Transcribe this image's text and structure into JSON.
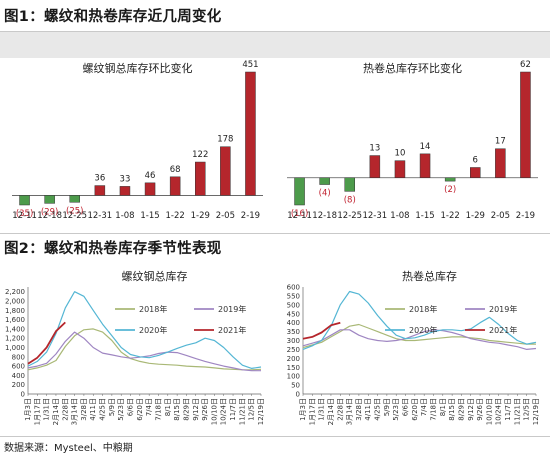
{
  "fig1": {
    "title": "图1：螺纹和热卷库存近几周变化"
  },
  "fig2": {
    "title": "图2：螺纹和热卷库存季节性表现"
  },
  "source": "数据来源：Mysteel、中粮期",
  "colors": {
    "pos": "#b5262c",
    "neg": "#4d9b4b",
    "neg_label": "#c0202e",
    "s2018": "#a9b876",
    "s2019": "#9f86c2",
    "s2020": "#54b6d4",
    "s2021": "#b5262c"
  },
  "chart_data": [
    {
      "type": "bar",
      "title": "螺纹钢总库存环比变化",
      "categories": [
        "12-11",
        "12-18",
        "12-25",
        "12-31",
        "1-08",
        "1-15",
        "1-22",
        "1-29",
        "2-05",
        "2-19"
      ],
      "values": [
        -35,
        -29,
        -25,
        36,
        33,
        46,
        68,
        122,
        178,
        451
      ],
      "labels": [
        "(35)",
        "(29)",
        "(25)",
        "36",
        "33",
        "46",
        "68",
        "122",
        "178",
        "451"
      ],
      "ylim": [
        -35,
        451
      ]
    },
    {
      "type": "bar",
      "title": "热卷总库存环比变化",
      "categories": [
        "12-11",
        "12-18",
        "12-25",
        "12-31",
        "1-08",
        "1-15",
        "1-22",
        "1-29",
        "2-05",
        "2-19"
      ],
      "values": [
        -16,
        -4,
        -8,
        13,
        10,
        14,
        -2,
        6,
        17,
        62
      ],
      "labels": [
        "(16)",
        "(4)",
        "(8)",
        "13",
        "10",
        "14",
        "(2)",
        "6",
        "17",
        "62"
      ],
      "ylim": [
        -16,
        62
      ]
    },
    {
      "type": "line",
      "title": "螺纹钢总库存",
      "x_ticks": [
        "1月3日",
        "1月17日",
        "1/31日",
        "2月14日",
        "2/28日",
        "3月14日",
        "3/28日",
        "4/11日",
        "4/25日",
        "5/9日",
        "5/23日",
        "6/6日",
        "6/20日",
        "7/4日",
        "7/18日",
        "8/1日",
        "8/15日",
        "8/29日",
        "9/12日",
        "9/26日",
        "10/10日",
        "10/24日",
        "11/7日",
        "11/21日",
        "12/5日",
        "12/19日"
      ],
      "y_ticks": [
        0,
        200,
        400,
        600,
        800,
        1000,
        1200,
        1400,
        1600,
        1800,
        2000,
        2200
      ],
      "y_tick_labels": [
        "0",
        "200",
        "400",
        "600",
        "800",
        "1,000",
        "1,200",
        "1,400",
        "1,600",
        "1,800",
        "2,000",
        "2,200"
      ],
      "ylim": [
        0,
        2300
      ],
      "series": [
        {
          "name": "2018年",
          "values": [
            520,
            560,
            620,
            720,
            1020,
            1250,
            1380,
            1400,
            1330,
            1150,
            900,
            760,
            700,
            660,
            640,
            630,
            620,
            600,
            590,
            580,
            560,
            540,
            530,
            520,
            520,
            530
          ]
        },
        {
          "name": "2019年",
          "values": [
            560,
            600,
            660,
            860,
            1130,
            1330,
            1200,
            1000,
            880,
            840,
            800,
            770,
            790,
            820,
            870,
            900,
            890,
            830,
            760,
            700,
            650,
            600,
            560,
            520,
            500,
            500
          ]
        },
        {
          "name": "2020年",
          "values": [
            600,
            700,
            900,
            1300,
            1850,
            2200,
            2100,
            1800,
            1500,
            1250,
            1000,
            850,
            800,
            780,
            830,
            900,
            980,
            1050,
            1100,
            1200,
            1150,
            1000,
            800,
            620,
            550,
            580
          ]
        },
        {
          "name": "2021年",
          "values": [
            650,
            780,
            1000,
            1350,
            1540
          ]
        }
      ]
    },
    {
      "type": "line",
      "title": "热卷总库存",
      "x_ticks": [
        "1月3日",
        "1月17日",
        "1/31日",
        "2月14日",
        "2/28日",
        "3月14日",
        "3/28日",
        "4/11日",
        "4/25日",
        "5/9日",
        "5/23日",
        "6/6日",
        "6/20日",
        "7/4日",
        "7/18日",
        "8/1日",
        "8/15日",
        "8/29日",
        "9/12日",
        "9/26日",
        "10/10日",
        "10/24日",
        "11/7日",
        "11/21日",
        "12/5日",
        "12/19日"
      ],
      "y_ticks": [
        0,
        50,
        100,
        150,
        200,
        250,
        300,
        350,
        400,
        450,
        500,
        550,
        600
      ],
      "y_tick_labels": [
        "0",
        "50",
        "100",
        "150",
        "200",
        "250",
        "300",
        "350",
        "400",
        "450",
        "500",
        "550",
        "600"
      ],
      "ylim": [
        0,
        600
      ],
      "series": [
        {
          "name": "2018年",
          "values": [
            260,
            275,
            290,
            320,
            350,
            380,
            390,
            370,
            350,
            330,
            310,
            300,
            300,
            305,
            310,
            315,
            320,
            320,
            315,
            310,
            300,
            295,
            290,
            285,
            280,
            280
          ]
        },
        {
          "name": "2019年",
          "values": [
            270,
            285,
            300,
            330,
            360,
            360,
            330,
            310,
            300,
            295,
            300,
            310,
            330,
            350,
            360,
            355,
            345,
            330,
            310,
            300,
            290,
            285,
            275,
            265,
            250,
            255
          ]
        },
        {
          "name": "2020年",
          "values": [
            250,
            270,
            300,
            380,
            500,
            575,
            560,
            510,
            440,
            380,
            330,
            310,
            315,
            330,
            350,
            360,
            360,
            355,
            365,
            400,
            430,
            390,
            340,
            300,
            280,
            290
          ]
        },
        {
          "name": "2021年",
          "values": [
            310,
            320,
            345,
            385,
            400
          ]
        }
      ]
    }
  ]
}
